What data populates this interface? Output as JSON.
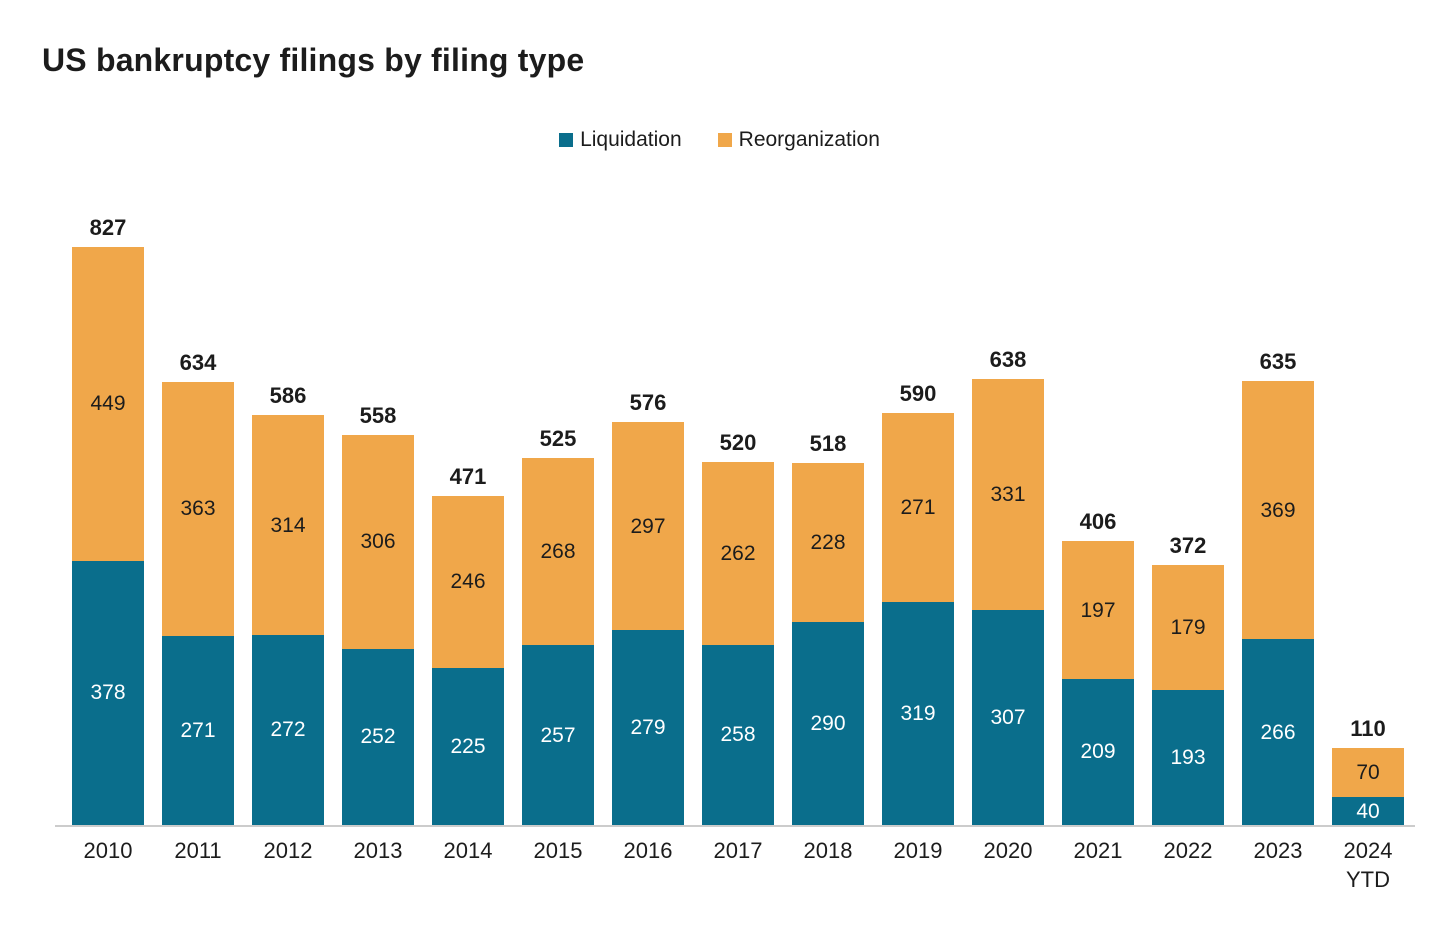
{
  "title": "US bankruptcy filings by filing type",
  "chart_data": {
    "type": "bar",
    "stacked": true,
    "title": "US bankruptcy filings by filing type",
    "xlabel": "",
    "ylabel": "",
    "grid": false,
    "legend_position": "top-center",
    "axis_line_color": "#cccccc",
    "categories": [
      "2010",
      "2011",
      "2012",
      "2013",
      "2014",
      "2015",
      "2016",
      "2017",
      "2018",
      "2019",
      "2020",
      "2021",
      "2022",
      "2023",
      "2024 YTD"
    ],
    "series": [
      {
        "name": "Liquidation",
        "color": "#0a6e8c",
        "label_color": "#ffffff",
        "values": [
          378,
          271,
          272,
          252,
          225,
          257,
          279,
          258,
          290,
          319,
          307,
          209,
          193,
          266,
          40
        ]
      },
      {
        "name": "Reorganization",
        "color": "#f0a74a",
        "label_color": "#1c1c1c",
        "values": [
          449,
          363,
          314,
          306,
          246,
          268,
          297,
          262,
          228,
          271,
          331,
          197,
          179,
          369,
          70
        ]
      }
    ],
    "totals": [
      827,
      634,
      586,
      558,
      471,
      525,
      576,
      520,
      518,
      590,
      638,
      406,
      372,
      635,
      110
    ],
    "ylim": [
      0,
      850
    ]
  }
}
